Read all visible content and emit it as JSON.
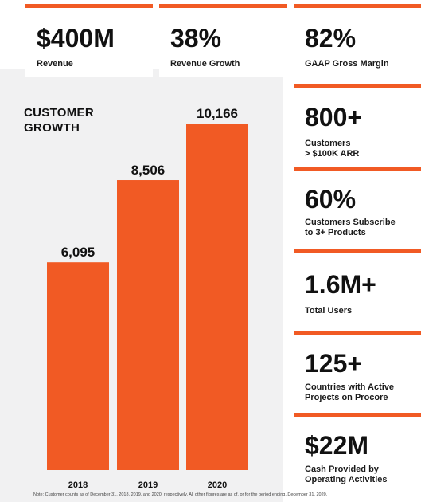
{
  "top_metrics": [
    {
      "value": "$400M",
      "label": "Revenue"
    },
    {
      "value": "38%",
      "label": "Revenue Growth"
    },
    {
      "value": "82%",
      "label": "GAAP Gross Margin"
    }
  ],
  "side_metrics": [
    {
      "value": "800+",
      "label": "Customers\n> $100K ARR"
    },
    {
      "value": "60%",
      "label": "Customers Subscribe\nto 3+ Products"
    },
    {
      "value": "1.6M+",
      "label": "Total Users"
    },
    {
      "value": "125+",
      "label": "Countries with Active\nProjects on Procore"
    },
    {
      "value": "$22M",
      "label": "Cash Provided by\nOperating Activities"
    }
  ],
  "chart_data": {
    "type": "bar",
    "title": "CUSTOMER\nGROWTH",
    "categories": [
      "2018",
      "2019",
      "2020"
    ],
    "values": [
      6095,
      8506,
      10166
    ],
    "value_labels": [
      "6,095",
      "8,506",
      "10,166"
    ],
    "bar_color": "#f15a24",
    "grid": false,
    "legend": "none"
  },
  "footnote": "Note: Customer counts as of December 31, 2018, 2019, and 2020, respectively. All other figures are as of, or for the period ending, December 31, 2020.",
  "colors": {
    "accent": "#f15a24",
    "panel": "#f1f1f2"
  }
}
